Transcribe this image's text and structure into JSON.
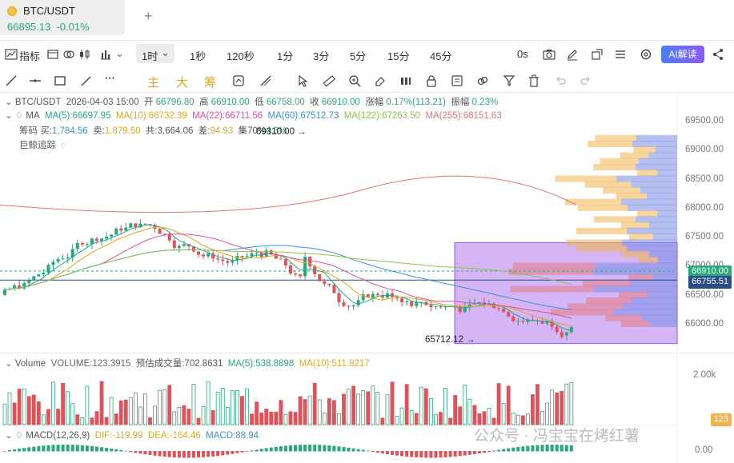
{
  "tab": {
    "symbol": "BTC/USDT",
    "price": "66895.13",
    "change": "-0.01%",
    "add": "+"
  },
  "toolbar": {
    "indicator_label": "指标",
    "timeframes": [
      "1时",
      "1秒",
      "120秒",
      "1分",
      "3分",
      "5分",
      "15分",
      "45分"
    ],
    "countdown": "0s",
    "ai_label": "AI解读"
  },
  "drawbar": {
    "main": "主",
    "big": "大",
    "chips": "筹"
  },
  "legend": {
    "line1": {
      "symbol": "BTC/USDT",
      "datetime": "2026-04-03 15:00",
      "open_label": "开",
      "open": "66796.80",
      "high_label": "高",
      "high": "66910.00",
      "low_label": "低",
      "low": "66758.00",
      "close_label": "收",
      "close": "66910.00",
      "chg_label": "涨幅",
      "chg": "0.17%(113.21)",
      "amp_label": "振幅",
      "amp": "0.23%"
    },
    "ma": {
      "name": "MA",
      "ma5": "MA(5):66697.95",
      "ma10": "MA(10):66732.39",
      "ma22": "MA(22):66711.56",
      "ma60": "MA(60):67512.73",
      "ma122": "MA(122):67263.50",
      "ma255": "MA(255):68151.63"
    },
    "chips": {
      "label": "筹码",
      "buy_label": "买:",
      "buy": "1,784.56",
      "sell_label": "卖:",
      "sell": "1,879.50",
      "total_label": "共:",
      "total": "3,664.06",
      "diff_label": "差:",
      "diff": "94.93",
      "conc_label": "集",
      "conc": "70%",
      "conc_val": "4.3%"
    },
    "whale": "巨鲸追踪"
  },
  "annotations": {
    "high_mark": "69310.00",
    "low_mark": "65712.12"
  },
  "price_axis": {
    "ticks": [
      "69500.00",
      "69000.00",
      "68500.00",
      "68000.00",
      "67500.00",
      "67000.00",
      "66500.00",
      "66000.00"
    ],
    "current": "66910.00",
    "line2": "66755.51"
  },
  "volume": {
    "title": "Volume",
    "vol": "VOLUME:123.3915",
    "est_label": "预估成交量:",
    "est": "702.8631",
    "ma5": "MA(5):538.8898",
    "ma10": "MA(10):511.8217",
    "axis_top": "2.00k",
    "current": "123"
  },
  "macd": {
    "title": "MACD(12,26,9)",
    "dif": "DIF:-119.99",
    "dea": "DEA:-164.46",
    "macd": "MACD:88.94",
    "axis_zero": "0.00"
  },
  "watermark": "公众号 · 冯宝宝在烤红薯",
  "colors": {
    "up": "#2aa87b",
    "down": "#e0525a",
    "ma5": "#2aa87b",
    "ma10": "#e0a81e",
    "ma22": "#d94fa6",
    "ma60": "#3b8fd9",
    "ma122": "#8bc34a",
    "ma255": "#e57373",
    "accent": "#8b5cf6"
  }
}
